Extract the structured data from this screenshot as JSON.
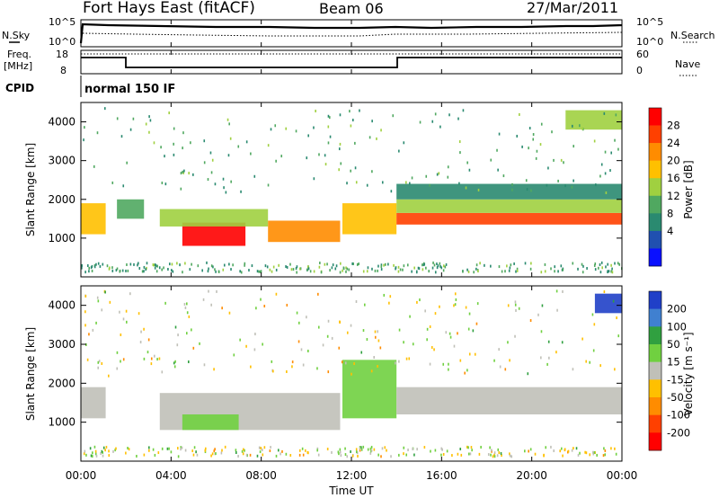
{
  "header": {
    "station": "Fort Hays East (fitACF)",
    "beam": "Beam 06",
    "date": "27/Mar/2011"
  },
  "noise_panel": {
    "left_label": "N.Sky",
    "right_label": "N.Search",
    "right_line_style": "dotted",
    "ticks": [
      "10^5",
      "10^0"
    ]
  },
  "freq_panel": {
    "left_label_1": "Freq.",
    "left_label_2": "[MHz]",
    "left_ticks": [
      "18",
      "8"
    ],
    "right_label": "Nave",
    "right_ticks": [
      "60",
      "0"
    ]
  },
  "cpid": {
    "label": "CPID",
    "value": "normal 150 IF"
  },
  "chart_data": [
    {
      "type": "heatmap",
      "name": "power",
      "ylabel": "Slant Range [km]",
      "xlabel": "",
      "ylim": [
        0,
        4500
      ],
      "yticks": [
        "1000",
        "2000",
        "3000",
        "4000"
      ],
      "colorbar": {
        "label": "Power [dB]",
        "ticks": [
          "28",
          "24",
          "20",
          "16",
          "12",
          "8",
          "4"
        ],
        "colors": [
          "#ff0000",
          "#ff4000",
          "#ff8c00",
          "#ffc000",
          "#a0d040",
          "#50a860",
          "#2a8a70",
          "#2050b0",
          "#0a10ff"
        ]
      },
      "echo_regions": [
        {
          "x0": 0.0,
          "x1": 1.1,
          "y0": 1100,
          "y1": 1900,
          "power": 16
        },
        {
          "x0": 1.6,
          "x1": 2.8,
          "y0": 1500,
          "y1": 2000,
          "power": 10
        },
        {
          "x0": 4.5,
          "x1": 7.3,
          "y0": 800,
          "y1": 1400,
          "power": 28
        },
        {
          "x0": 3.5,
          "x1": 8.3,
          "y0": 1300,
          "y1": 1750,
          "power": 14
        },
        {
          "x0": 8.3,
          "x1": 11.5,
          "y0": 900,
          "y1": 1450,
          "power": 22
        },
        {
          "x0": 11.6,
          "x1": 14.0,
          "y0": 1100,
          "y1": 1900,
          "power": 16
        },
        {
          "x0": 14.0,
          "x1": 24.0,
          "y0": 1350,
          "y1": 1650,
          "power": 24
        },
        {
          "x0": 14.0,
          "x1": 24.0,
          "y0": 1650,
          "y1": 2000,
          "power": 12
        },
        {
          "x0": 14.0,
          "x1": 24.0,
          "y0": 2000,
          "y1": 2400,
          "power": 6
        },
        {
          "x0": 21.5,
          "x1": 24.0,
          "y0": 3800,
          "y1": 4300,
          "power": 12
        }
      ]
    },
    {
      "type": "heatmap",
      "name": "velocity",
      "ylabel": "Slant Range [km]",
      "xlabel": "Time UT",
      "ylim": [
        0,
        4500
      ],
      "yticks": [
        "1000",
        "2000",
        "3000",
        "4000"
      ],
      "xticks": [
        "00:00",
        "04:00",
        "08:00",
        "12:00",
        "16:00",
        "20:00",
        "00:00"
      ],
      "colorbar": {
        "label": "Velocity [m s⁻¹]",
        "ticks": [
          "200",
          "100",
          "50",
          "15",
          "-15",
          "-50",
          "-100",
          "-200"
        ],
        "colors": [
          "#2040c8",
          "#4080d0",
          "#30a040",
          "#70d040",
          "#c0c0b8",
          "#ffc000",
          "#ff8c00",
          "#ff4000",
          "#ff0000"
        ]
      },
      "echo_regions": [
        {
          "x0": 0.0,
          "x1": 1.1,
          "y0": 1100,
          "y1": 1900,
          "velocity": 0
        },
        {
          "x0": 3.5,
          "x1": 11.5,
          "y0": 800,
          "y1": 1750,
          "velocity": 0
        },
        {
          "x0": 4.5,
          "x1": 7.0,
          "y0": 800,
          "y1": 1200,
          "velocity": 30
        },
        {
          "x0": 11.6,
          "x1": 14.0,
          "y0": 1100,
          "y1": 2600,
          "velocity": 30
        },
        {
          "x0": 14.0,
          "x1": 24.0,
          "y0": 1200,
          "y1": 1900,
          "velocity": 0
        },
        {
          "x0": 22.8,
          "x1": 24.0,
          "y0": 3800,
          "y1": 4300,
          "velocity": 200
        }
      ]
    }
  ]
}
